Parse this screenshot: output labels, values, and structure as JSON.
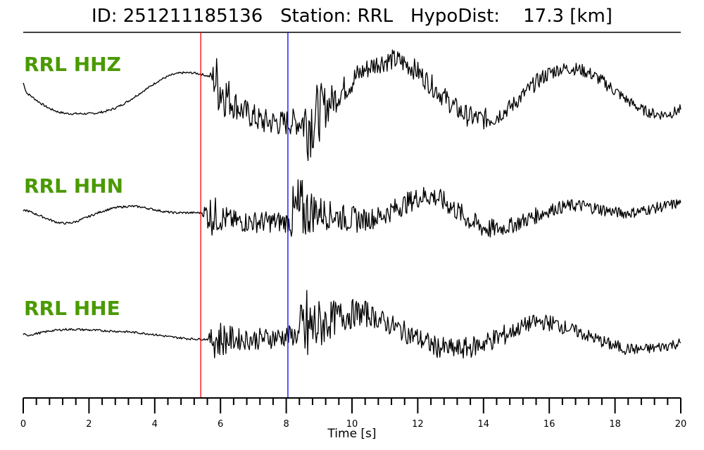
{
  "header": {
    "id_label": "ID:",
    "id_value": "251211185136",
    "station_label": "Station:",
    "station_value": "RRL",
    "hypodist_label": "HypoDist:",
    "hypodist_value": "17.3",
    "hypodist_unit": "[km]"
  },
  "colors": {
    "label": "#4a9a00",
    "trace": "#000000",
    "p_pick": "#ff0000",
    "s_pick": "#0000ff"
  },
  "chart_data": {
    "type": "line",
    "xlabel": "Time [s]",
    "xlim": [
      0,
      20
    ],
    "x_major_ticks": [
      0,
      2,
      4,
      6,
      8,
      10,
      12,
      14,
      16,
      18,
      20
    ],
    "x_minor_step": 0.4,
    "picks": [
      {
        "phase": "P",
        "time": 5.4,
        "color": "#ff0000"
      },
      {
        "phase": "S",
        "time": 8.05,
        "color": "#0000ff"
      }
    ],
    "series": [
      {
        "name": "RRL HHZ",
        "noise_amp": [
          0.02,
          0.02,
          0.02,
          0.02,
          0.02,
          0.02,
          0.02,
          0.02,
          0.02,
          0.02,
          0.02,
          0.02,
          0.02,
          0.02,
          0.02,
          0.02,
          0.02,
          0.02,
          0.02,
          0.02,
          0.02,
          0.02,
          0.02,
          0.02,
          0.02,
          0.02,
          0.02,
          0.02,
          0.02,
          0.02,
          0.02,
          0.02,
          0.02,
          0.02,
          0.02,
          0.02,
          0.02,
          0.02,
          0.02,
          0.02,
          0.02,
          0.02,
          0.02,
          0.02,
          0.02,
          0.02,
          0.02,
          0.02,
          0.02,
          0.02,
          0.02,
          0.02,
          0.02,
          0.02,
          0.3,
          0.55,
          0.6,
          0.5,
          0.4,
          0.35,
          0.3,
          0.25,
          0.25,
          0.25,
          0.25,
          0.25,
          0.25,
          0.25,
          0.25,
          0.25,
          0.25,
          0.25,
          0.25,
          0.25,
          0.25,
          0.25,
          0.25,
          0.25,
          0.25,
          0.25,
          0.6,
          0.75,
          0.7,
          0.65,
          0.55,
          0.5,
          0.4,
          0.35,
          0.3,
          0.3,
          0.25,
          0.25,
          0.25,
          0.25,
          0.25,
          0.25,
          0.2,
          0.2,
          0.2,
          0.2,
          0.2,
          0.2,
          0.2,
          0.2,
          0.2,
          0.2,
          0.2,
          0.2,
          0.2,
          0.2,
          0.2,
          0.2,
          0.2,
          0.2,
          0.2,
          0.2,
          0.2,
          0.2,
          0.2,
          0.2,
          0.2,
          0.2,
          0.2,
          0.2,
          0.2,
          0.2,
          0.2,
          0.2,
          0.2,
          0.2,
          0.2,
          0.2,
          0.2,
          0.2,
          0.2,
          0.2,
          0.15,
          0.15,
          0.15,
          0.15,
          0.15,
          0.15,
          0.15,
          0.15,
          0.15,
          0.15,
          0.15,
          0.15,
          0.15,
          0.15,
          0.15,
          0.15,
          0.12,
          0.12,
          0.12,
          0.12,
          0.12,
          0.12,
          0.12,
          0.12,
          0.12,
          0.12,
          0.12,
          0.12,
          0.12,
          0.12,
          0.12,
          0.12,
          0.12,
          0.12,
          0.1,
          0.1,
          0.1,
          0.1,
          0.1,
          0.1,
          0.1,
          0.1,
          0.1,
          0.1,
          0.1,
          0.1,
          0.1,
          0.1,
          0.1,
          0.1,
          0.1,
          0.1,
          0.1,
          0.1,
          0.1,
          0.1,
          0.1,
          0.1,
          0.1,
          0.1,
          0.1,
          0.1,
          0.1,
          0.1,
          0.1,
          0.1
        ],
        "base": [
          0.25,
          -0.05,
          -0.12,
          -0.2,
          -0.28,
          -0.35,
          -0.42,
          -0.48,
          -0.53,
          -0.57,
          -0.61,
          -0.63,
          -0.65,
          -0.66,
          -0.66,
          -0.66,
          -0.66,
          -0.66,
          -0.66,
          -0.66,
          -0.65,
          -0.64,
          -0.62,
          -0.6,
          -0.57,
          -0.54,
          -0.5,
          -0.45,
          -0.4,
          -0.34,
          -0.28,
          -0.21,
          -0.14,
          -0.07,
          0,
          0.07,
          0.14,
          0.21,
          0.28,
          0.34,
          0.39,
          0.44,
          0.48,
          0.51,
          0.53,
          0.55,
          0.55,
          0.55,
          0.55,
          0.54,
          0.52,
          0.5,
          0.47,
          0.44,
          0.4,
          0.28,
          0.15,
          0,
          -0.12,
          -0.25,
          -0.35,
          -0.45,
          -0.55,
          -0.6,
          -0.68,
          -0.72,
          -0.78,
          -0.85,
          -0.9,
          -0.9,
          -0.9,
          -0.92,
          -0.9,
          -0.95,
          -0.95,
          -0.92,
          -0.9,
          -0.9,
          -0.92,
          -0.9,
          -0.85,
          -0.85,
          -0.8,
          -0.75,
          -0.65,
          -0.55,
          -0.45,
          -0.35,
          -0.25,
          -0.15,
          -0.05,
          0.05,
          0.15,
          0.25,
          0.35,
          0.45,
          0.55,
          0.62,
          0.68,
          0.75,
          0.8,
          0.85,
          0.88,
          0.9,
          0.92,
          0.93,
          0.92,
          0.9,
          0.85,
          0.8,
          0.75,
          0.68,
          0.6,
          0.5,
          0.4,
          0.3,
          0.2,
          0.1,
          0,
          -0.1,
          -0.2,
          -0.3,
          -0.4,
          -0.5,
          -0.58,
          -0.65,
          -0.7,
          -0.75,
          -0.78,
          -0.8,
          -0.82,
          -0.82,
          -0.8,
          -0.78,
          -0.75,
          -0.7,
          -0.65,
          -0.58,
          -0.5,
          -0.42,
          -0.32,
          -0.22,
          -0.12,
          -0.02,
          0.08,
          0.18,
          0.28,
          0.36,
          0.44,
          0.5,
          0.56,
          0.6,
          0.64,
          0.66,
          0.67,
          0.68,
          0.68,
          0.67,
          0.65,
          0.62,
          0.58,
          0.54,
          0.48,
          0.42,
          0.35,
          0.28,
          0.2,
          0.12,
          0.04,
          -0.04,
          -0.12,
          -0.2,
          -0.28,
          -0.35,
          -0.42,
          -0.48,
          -0.54,
          -0.58,
          -0.62,
          -0.65,
          -0.67,
          -0.68,
          -0.68,
          -0.67,
          -0.65,
          -0.62,
          -0.58,
          -0.54
        ]
      },
      {
        "name": "RRL HHN",
        "noise_amp": [
          0.02,
          0.02,
          0.02,
          0.02,
          0.02,
          0.02,
          0.02,
          0.02,
          0.02,
          0.02,
          0.02,
          0.02,
          0.02,
          0.02,
          0.02,
          0.02,
          0.02,
          0.02,
          0.02,
          0.02,
          0.02,
          0.02,
          0.02,
          0.02,
          0.02,
          0.02,
          0.02,
          0.02,
          0.02,
          0.02,
          0.02,
          0.02,
          0.02,
          0.02,
          0.02,
          0.02,
          0.02,
          0.02,
          0.02,
          0.02,
          0.02,
          0.02,
          0.02,
          0.02,
          0.02,
          0.02,
          0.02,
          0.02,
          0.02,
          0.02,
          0.02,
          0.02,
          0.02,
          0.02,
          0.2,
          0.35,
          0.4,
          0.35,
          0.3,
          0.25,
          0.25,
          0.2,
          0.2,
          0.2,
          0.2,
          0.2,
          0.2,
          0.2,
          0.2,
          0.2,
          0.2,
          0.2,
          0.2,
          0.2,
          0.2,
          0.2,
          0.2,
          0.2,
          0.2,
          0.2,
          0.6,
          0.8,
          0.75,
          0.6,
          0.5,
          0.45,
          0.4,
          0.35,
          0.3,
          0.3,
          0.3,
          0.25,
          0.25,
          0.25,
          0.25,
          0.25,
          0.25,
          0.25,
          0.25,
          0.25,
          0.2,
          0.2,
          0.2,
          0.2,
          0.2,
          0.2,
          0.2,
          0.2,
          0.2,
          0.2,
          0.2,
          0.2,
          0.2,
          0.2,
          0.2,
          0.2,
          0.2,
          0.2,
          0.2,
          0.2,
          0.2,
          0.2,
          0.2,
          0.2,
          0.2,
          0.2,
          0.2,
          0.2,
          0.2,
          0.2,
          0.2,
          0.2,
          0.2,
          0.2,
          0.2,
          0.2,
          0.2,
          0.2,
          0.2,
          0.2,
          0.15,
          0.15,
          0.15,
          0.15,
          0.15,
          0.15,
          0.15,
          0.15,
          0.15,
          0.15,
          0.15,
          0.15,
          0.15,
          0.15,
          0.15,
          0.15,
          0.12,
          0.12,
          0.12,
          0.12,
          0.12,
          0.12,
          0.12,
          0.12,
          0.12,
          0.12,
          0.12,
          0.12,
          0.12,
          0.12,
          0.12,
          0.12,
          0.12,
          0.12,
          0.1,
          0.1,
          0.1,
          0.1,
          0.1,
          0.1,
          0.1,
          0.1,
          0.1,
          0.1,
          0.1,
          0.1,
          0.1,
          0.1,
          0.1,
          0.1,
          0.1,
          0.1,
          0.1,
          0.1,
          0.1,
          0.1,
          0.1,
          0.1,
          0.1,
          0.1,
          0.1,
          0.1,
          0.1,
          0.1,
          0.1,
          0.1
        ],
        "base": [
          0.1,
          0.12,
          0.08,
          0.04,
          0,
          -0.04,
          -0.08,
          -0.12,
          -0.16,
          -0.2,
          -0.23,
          -0.25,
          -0.26,
          -0.26,
          -0.25,
          -0.23,
          -0.2,
          -0.16,
          -0.12,
          -0.08,
          -0.04,
          0,
          0.04,
          0.08,
          0.11,
          0.14,
          0.17,
          0.19,
          0.21,
          0.22,
          0.23,
          0.24,
          0.24,
          0.24,
          0.23,
          0.22,
          0.2,
          0.18,
          0.16,
          0.14,
          0.12,
          0.1,
          0.08,
          0.07,
          0.06,
          0.05,
          0.05,
          0.05,
          0.05,
          0.05,
          0.05,
          0.05,
          0.05,
          0.05,
          0.05,
          0.02,
          0,
          -0.04,
          -0.06,
          -0.1,
          -0.12,
          -0.15,
          -0.18,
          -0.2,
          -0.22,
          -0.22,
          -0.22,
          -0.22,
          -0.22,
          -0.22,
          -0.22,
          -0.22,
          -0.22,
          -0.22,
          -0.22,
          -0.22,
          -0.22,
          -0.22,
          -0.22,
          -0.22,
          -0.1,
          -0.05,
          0,
          0.05,
          0.08,
          0.1,
          0.1,
          0.1,
          0.08,
          0.05,
          0.02,
          0,
          -0.02,
          -0.05,
          -0.08,
          -0.1,
          -0.12,
          -0.15,
          -0.15,
          -0.15,
          -0.15,
          -0.15,
          -0.15,
          -0.12,
          -0.1,
          -0.08,
          -0.05,
          0,
          0.05,
          0.1,
          0.15,
          0.2,
          0.25,
          0.3,
          0.35,
          0.4,
          0.45,
          0.5,
          0.52,
          0.55,
          0.55,
          0.55,
          0.52,
          0.48,
          0.42,
          0.36,
          0.3,
          0.22,
          0.15,
          0.08,
          0,
          -0.08,
          -0.15,
          -0.22,
          -0.28,
          -0.33,
          -0.37,
          -0.4,
          -0.42,
          -0.43,
          -0.43,
          -0.42,
          -0.4,
          -0.38,
          -0.35,
          -0.32,
          -0.28,
          -0.24,
          -0.2,
          -0.16,
          -0.12,
          -0.08,
          -0.04,
          0,
          0.04,
          0.08,
          0.12,
          0.15,
          0.18,
          0.2,
          0.22,
          0.24,
          0.25,
          0.26,
          0.26,
          0.26,
          0.25,
          0.24,
          0.22,
          0.2,
          0.18,
          0.16,
          0.14,
          0.12,
          0.1,
          0.08,
          0.06,
          0.05,
          0.04,
          0.04,
          0.05,
          0.06,
          0.08,
          0.1,
          0.12,
          0.14,
          0.16,
          0.18,
          0.2,
          0.22,
          0.24,
          0.26,
          0.28,
          0.3,
          0.32,
          0.34
        ]
      },
      {
        "name": "RRL HHE",
        "noise_amp": [
          0.02,
          0.02,
          0.02,
          0.02,
          0.02,
          0.02,
          0.02,
          0.02,
          0.02,
          0.02,
          0.02,
          0.02,
          0.02,
          0.02,
          0.02,
          0.02,
          0.02,
          0.02,
          0.02,
          0.02,
          0.02,
          0.02,
          0.02,
          0.02,
          0.02,
          0.02,
          0.02,
          0.02,
          0.02,
          0.02,
          0.02,
          0.02,
          0.02,
          0.02,
          0.02,
          0.02,
          0.02,
          0.02,
          0.02,
          0.02,
          0.02,
          0.02,
          0.02,
          0.02,
          0.02,
          0.02,
          0.02,
          0.02,
          0.02,
          0.02,
          0.02,
          0.02,
          0.02,
          0.02,
          0.2,
          0.35,
          0.4,
          0.35,
          0.3,
          0.25,
          0.25,
          0.2,
          0.2,
          0.2,
          0.2,
          0.2,
          0.2,
          0.2,
          0.2,
          0.2,
          0.2,
          0.2,
          0.2,
          0.2,
          0.2,
          0.2,
          0.2,
          0.2,
          0.2,
          0.2,
          0.7,
          0.9,
          0.8,
          0.7,
          0.6,
          0.5,
          0.45,
          0.4,
          0.35,
          0.35,
          0.3,
          0.3,
          0.3,
          0.3,
          0.3,
          0.25,
          0.25,
          0.25,
          0.25,
          0.25,
          0.2,
          0.2,
          0.2,
          0.2,
          0.2,
          0.2,
          0.2,
          0.2,
          0.2,
          0.2,
          0.2,
          0.2,
          0.2,
          0.2,
          0.2,
          0.2,
          0.2,
          0.2,
          0.2,
          0.2,
          0.2,
          0.2,
          0.2,
          0.2,
          0.2,
          0.2,
          0.2,
          0.2,
          0.2,
          0.2,
          0.2,
          0.2,
          0.2,
          0.2,
          0.2,
          0.2,
          0.2,
          0.2,
          0.2,
          0.2,
          0.15,
          0.15,
          0.15,
          0.15,
          0.15,
          0.15,
          0.15,
          0.15,
          0.15,
          0.15,
          0.15,
          0.15,
          0.15,
          0.15,
          0.15,
          0.15,
          0.12,
          0.12,
          0.12,
          0.12,
          0.12,
          0.12,
          0.12,
          0.12,
          0.12,
          0.12,
          0.12,
          0.12,
          0.12,
          0.12,
          0.12,
          0.12,
          0.12,
          0.12,
          0.1,
          0.1,
          0.1,
          0.1,
          0.1,
          0.1,
          0.1,
          0.1,
          0.1,
          0.1,
          0.1,
          0.1,
          0.1,
          0.1,
          0.1,
          0.1,
          0.1,
          0.1,
          0.1,
          0.1,
          0.1,
          0.1,
          0.1,
          0.1,
          0.1,
          0.1,
          0.1,
          0.1,
          0.1,
          0.1,
          0.1,
          0.1
        ],
        "base": [
          0.1,
          0.06,
          0.08,
          0.1,
          0.12,
          0.14,
          0.16,
          0.18,
          0.2,
          0.21,
          0.22,
          0.23,
          0.24,
          0.24,
          0.24,
          0.24,
          0.24,
          0.23,
          0.23,
          0.22,
          0.22,
          0.21,
          0.21,
          0.2,
          0.2,
          0.19,
          0.19,
          0.18,
          0.18,
          0.17,
          0.17,
          0.16,
          0.15,
          0.14,
          0.13,
          0.12,
          0.11,
          0.1,
          0.08,
          0.07,
          0.05,
          0.04,
          0.02,
          0.01,
          0,
          -0.01,
          -0.02,
          -0.03,
          -0.04,
          -0.04,
          -0.05,
          -0.05,
          -0.05,
          -0.05,
          -0.05,
          -0.05,
          -0.05,
          -0.05,
          -0.05,
          -0.05,
          -0.05,
          -0.05,
          -0.05,
          -0.05,
          -0.05,
          -0.05,
          -0.05,
          -0.05,
          -0.04,
          -0.03,
          -0.02,
          -0.01,
          0,
          0.01,
          0.02,
          0.03,
          0.04,
          0.05,
          0.06,
          0.07,
          0.1,
          0.15,
          0.2,
          0.25,
          0.3,
          0.35,
          0.4,
          0.45,
          0.5,
          0.55,
          0.6,
          0.62,
          0.65,
          0.68,
          0.7,
          0.72,
          0.72,
          0.72,
          0.7,
          0.68,
          0.65,
          0.6,
          0.55,
          0.5,
          0.45,
          0.4,
          0.35,
          0.3,
          0.25,
          0.2,
          0.15,
          0.1,
          0.05,
          0,
          -0.05,
          -0.1,
          -0.15,
          -0.2,
          -0.25,
          -0.28,
          -0.3,
          -0.32,
          -0.34,
          -0.35,
          -0.35,
          -0.35,
          -0.34,
          -0.32,
          -0.3,
          -0.28,
          -0.25,
          -0.22,
          -0.18,
          -0.14,
          -0.1,
          -0.06,
          -0.02,
          0.02,
          0.06,
          0.1,
          0.15,
          0.2,
          0.25,
          0.3,
          0.35,
          0.4,
          0.42,
          0.44,
          0.45,
          0.45,
          0.45,
          0.44,
          0.42,
          0.4,
          0.37,
          0.34,
          0.3,
          0.26,
          0.22,
          0.18,
          0.14,
          0.1,
          0.06,
          0.02,
          -0.02,
          -0.06,
          -0.1,
          -0.14,
          -0.18,
          -0.22,
          -0.25,
          -0.28,
          -0.3,
          -0.32,
          -0.33,
          -0.34,
          -0.35,
          -0.35,
          -0.35,
          -0.34,
          -0.33,
          -0.32,
          -0.3,
          -0.28,
          -0.26,
          -0.24,
          -0.22,
          -0.2,
          -0.18,
          -0.16
        ]
      }
    ]
  }
}
